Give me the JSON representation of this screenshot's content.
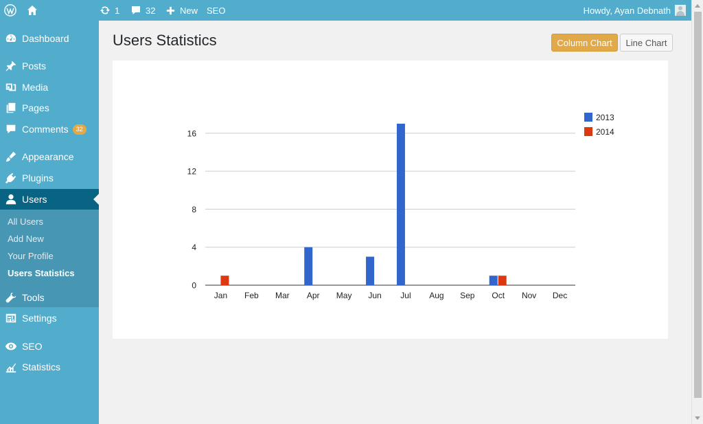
{
  "adminbar": {
    "updates_count": "1",
    "comments_count": "32",
    "new_label": "New",
    "seo_label": "SEO",
    "howdy": "Howdy, Ayan Debnath"
  },
  "sidebar": {
    "items": [
      {
        "label": "Dashboard",
        "icon": "dashboard-icon"
      },
      {
        "label": "Posts",
        "icon": "pin-icon"
      },
      {
        "label": "Media",
        "icon": "media-icon"
      },
      {
        "label": "Pages",
        "icon": "pages-icon"
      },
      {
        "label": "Comments",
        "icon": "comment-icon",
        "badge": "32"
      },
      {
        "label": "Appearance",
        "icon": "brush-icon"
      },
      {
        "label": "Plugins",
        "icon": "plug-icon"
      },
      {
        "label": "Users",
        "icon": "user-icon"
      },
      {
        "label": "Tools",
        "icon": "wrench-icon"
      },
      {
        "label": "Settings",
        "icon": "settings-icon"
      },
      {
        "label": "SEO",
        "icon": "seo-icon"
      },
      {
        "label": "Statistics",
        "icon": "chart-icon"
      }
    ],
    "submenu": [
      "All Users",
      "Add New",
      "Your Profile",
      "Users Statistics"
    ]
  },
  "main": {
    "title": "Users Statistics",
    "column_chart_label": "Column Chart",
    "line_chart_label": "Line Chart"
  },
  "chart_data": {
    "type": "bar",
    "categories": [
      "Jan",
      "Feb",
      "Mar",
      "Apr",
      "May",
      "Jun",
      "Jul",
      "Aug",
      "Sep",
      "Oct",
      "Nov",
      "Dec"
    ],
    "series": [
      {
        "name": "2013",
        "color": "#3366cc",
        "values": [
          0,
          0,
          0,
          4,
          0,
          3,
          17,
          0,
          0,
          1,
          0,
          0
        ]
      },
      {
        "name": "2014",
        "color": "#dc3912",
        "values": [
          1,
          0,
          0,
          0,
          0,
          0,
          0,
          0,
          0,
          1,
          0,
          0
        ]
      }
    ],
    "yticks": [
      0,
      4,
      8,
      12,
      16
    ],
    "ylim": [
      0,
      17
    ],
    "grid": true,
    "legend_position": "right"
  }
}
